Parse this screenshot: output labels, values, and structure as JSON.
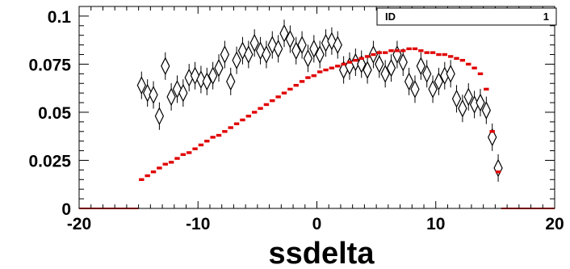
{
  "stats_box": {
    "label": "ID",
    "value": "1"
  },
  "chart_data": {
    "type": "scatter",
    "xlabel": "ssdelta",
    "ylabel": "",
    "xlim": [
      -20,
      20
    ],
    "ylim": [
      0,
      0.105
    ],
    "x_ticks": [
      "-20",
      "-10",
      "0",
      "10",
      "20"
    ],
    "y_ticks": [
      "0",
      "0.025",
      "0.05",
      "0.075",
      "0.1"
    ],
    "x_tick_values": [
      -20,
      -10,
      0,
      10,
      20
    ],
    "y_tick_values": [
      0,
      0.025,
      0.05,
      0.075,
      0.1
    ],
    "grid": false,
    "colors": {
      "series_open": "#000000",
      "series_red": "#e00000"
    },
    "series": [
      {
        "marker": "open-diamond",
        "points": [
          [
            -14.75,
            0.064
          ],
          [
            -14.25,
            0.06
          ],
          [
            -13.75,
            0.059
          ],
          [
            -13.25,
            0.048
          ],
          [
            -12.75,
            0.074
          ],
          [
            -12.25,
            0.058
          ],
          [
            -11.75,
            0.062
          ],
          [
            -11.25,
            0.06
          ],
          [
            -10.75,
            0.068
          ],
          [
            -10.25,
            0.069
          ],
          [
            -9.75,
            0.067
          ],
          [
            -9.25,
            0.066
          ],
          [
            -8.75,
            0.069
          ],
          [
            -8.25,
            0.073
          ],
          [
            -7.75,
            0.08
          ],
          [
            -7.25,
            0.066
          ],
          [
            -6.75,
            0.077
          ],
          [
            -6.25,
            0.082
          ],
          [
            -5.75,
            0.08
          ],
          [
            -5.25,
            0.086
          ],
          [
            -4.75,
            0.082
          ],
          [
            -4.25,
            0.08
          ],
          [
            -3.75,
            0.085
          ],
          [
            -3.25,
            0.083
          ],
          [
            -2.75,
            0.091
          ],
          [
            -2.25,
            0.088
          ],
          [
            -1.75,
            0.082
          ],
          [
            -1.25,
            0.085
          ],
          [
            -0.75,
            0.078
          ],
          [
            -0.25,
            0.083
          ],
          [
            0.25,
            0.08
          ],
          [
            0.75,
            0.086
          ],
          [
            1.25,
            0.087
          ],
          [
            1.75,
            0.085
          ],
          [
            2.25,
            0.072
          ],
          [
            2.75,
            0.074
          ],
          [
            3.25,
            0.076
          ],
          [
            3.75,
            0.075
          ],
          [
            4.25,
            0.072
          ],
          [
            4.75,
            0.08
          ],
          [
            5.25,
            0.075
          ],
          [
            5.75,
            0.07
          ],
          [
            6.25,
            0.073
          ],
          [
            6.75,
            0.08
          ],
          [
            7.25,
            0.076
          ],
          [
            7.75,
            0.066
          ],
          [
            8.25,
            0.062
          ],
          [
            8.75,
            0.074
          ],
          [
            9.25,
            0.07
          ],
          [
            9.75,
            0.062
          ],
          [
            10.25,
            0.066
          ],
          [
            10.75,
            0.069
          ],
          [
            11.25,
            0.07
          ],
          [
            11.75,
            0.057
          ],
          [
            12.25,
            0.052
          ],
          [
            12.75,
            0.058
          ],
          [
            13.25,
            0.054
          ],
          [
            13.75,
            0.055
          ],
          [
            14.25,
            0.051
          ],
          [
            14.75,
            0.037
          ],
          [
            15.25,
            0.021
          ]
        ]
      },
      {
        "marker": "red-square",
        "points": [
          [
            -19.75,
            0
          ],
          [
            -19.25,
            0
          ],
          [
            -18.75,
            0
          ],
          [
            -18.25,
            0
          ],
          [
            -17.75,
            0
          ],
          [
            -17.25,
            0
          ],
          [
            -16.75,
            0
          ],
          [
            -16.25,
            0
          ],
          [
            -15.75,
            0
          ],
          [
            -15.25,
            0
          ],
          [
            -14.75,
            0.015
          ],
          [
            -14.25,
            0.017
          ],
          [
            -13.75,
            0.019
          ],
          [
            -13.25,
            0.021
          ],
          [
            -12.75,
            0.023
          ],
          [
            -12.25,
            0.024
          ],
          [
            -11.75,
            0.026
          ],
          [
            -11.25,
            0.028
          ],
          [
            -10.75,
            0.029
          ],
          [
            -10.25,
            0.031
          ],
          [
            -9.75,
            0.033
          ],
          [
            -9.25,
            0.035
          ],
          [
            -8.75,
            0.037
          ],
          [
            -8.25,
            0.038
          ],
          [
            -7.75,
            0.04
          ],
          [
            -7.25,
            0.042
          ],
          [
            -6.75,
            0.044
          ],
          [
            -6.25,
            0.046
          ],
          [
            -5.75,
            0.048
          ],
          [
            -5.25,
            0.05
          ],
          [
            -4.75,
            0.052
          ],
          [
            -4.25,
            0.054
          ],
          [
            -3.75,
            0.056
          ],
          [
            -3.25,
            0.058
          ],
          [
            -2.75,
            0.06
          ],
          [
            -2.25,
            0.062
          ],
          [
            -1.75,
            0.064
          ],
          [
            -1.25,
            0.066
          ],
          [
            -0.75,
            0.068
          ],
          [
            -0.25,
            0.069
          ],
          [
            0.25,
            0.071
          ],
          [
            0.75,
            0.072
          ],
          [
            1.25,
            0.073
          ],
          [
            1.75,
            0.074
          ],
          [
            2.25,
            0.075
          ],
          [
            2.75,
            0.076
          ],
          [
            3.25,
            0.077
          ],
          [
            3.75,
            0.078
          ],
          [
            4.25,
            0.079
          ],
          [
            4.75,
            0.08
          ],
          [
            5.25,
            0.081
          ],
          [
            5.75,
            0.081
          ],
          [
            6.25,
            0.082
          ],
          [
            6.75,
            0.082
          ],
          [
            7.25,
            0.082
          ],
          [
            7.75,
            0.083
          ],
          [
            8.25,
            0.083
          ],
          [
            8.75,
            0.082
          ],
          [
            9.25,
            0.081
          ],
          [
            9.75,
            0.081
          ],
          [
            10.25,
            0.08
          ],
          [
            10.75,
            0.08
          ],
          [
            11.25,
            0.079
          ],
          [
            11.75,
            0.078
          ],
          [
            12.25,
            0.077
          ],
          [
            12.75,
            0.075
          ],
          [
            13.25,
            0.073
          ],
          [
            13.75,
            0.07
          ],
          [
            14.25,
            0.062
          ],
          [
            14.75,
            0.04
          ],
          [
            15.25,
            0.019
          ],
          [
            15.75,
            0
          ],
          [
            16.25,
            0
          ],
          [
            16.75,
            0
          ],
          [
            17.25,
            0
          ],
          [
            17.75,
            0
          ],
          [
            18.25,
            0
          ],
          [
            18.75,
            0
          ],
          [
            19.25,
            0
          ],
          [
            19.75,
            0
          ]
        ]
      }
    ]
  }
}
